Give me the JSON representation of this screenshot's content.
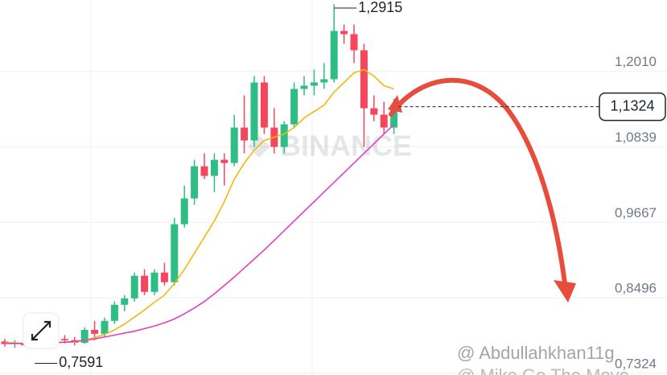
{
  "chart_data": {
    "type": "candlestick",
    "open": [
      0.768,
      0.764,
      0.766,
      0.762,
      0.764,
      0.768,
      0.772,
      0.77,
      0.766,
      0.786,
      0.78,
      0.8,
      0.825,
      0.835,
      0.87,
      0.845,
      0.875,
      0.86,
      0.95,
      0.99,
      1.04,
      1.025,
      1.05,
      1.045,
      1.1,
      1.08,
      1.17,
      1.1,
      1.07,
      1.105,
      1.16,
      1.165,
      1.17,
      1.175,
      1.25,
      1.245,
      1.22,
      1.13,
      1.12,
      1.1
    ],
    "high": [
      0.772,
      0.77,
      0.77,
      0.766,
      0.772,
      0.776,
      0.778,
      0.775,
      0.79,
      0.8,
      0.805,
      0.83,
      0.84,
      0.875,
      0.88,
      0.88,
      0.89,
      0.96,
      1.01,
      1.05,
      1.06,
      1.06,
      1.06,
      1.12,
      1.15,
      1.18,
      1.18,
      1.13,
      1.11,
      1.17,
      1.18,
      1.19,
      1.2,
      1.2915,
      1.26,
      1.26,
      1.23,
      1.15,
      1.14,
      1.145
    ],
    "low": [
      0.76,
      0.758,
      0.76,
      0.7591,
      0.762,
      0.764,
      0.765,
      0.762,
      0.764,
      0.77,
      0.775,
      0.795,
      0.815,
      0.83,
      0.84,
      0.84,
      0.855,
      0.855,
      0.945,
      0.98,
      1.02,
      1.0,
      1.01,
      1.04,
      1.06,
      1.07,
      1.09,
      1.06,
      1.06,
      1.1,
      1.15,
      1.15,
      1.16,
      1.17,
      1.23,
      1.2,
      1.07,
      1.11,
      1.09,
      1.09
    ],
    "close": [
      0.764,
      0.766,
      0.762,
      0.764,
      0.768,
      0.772,
      0.77,
      0.766,
      0.786,
      0.78,
      0.8,
      0.825,
      0.835,
      0.87,
      0.845,
      0.875,
      0.86,
      0.95,
      0.99,
      1.04,
      1.025,
      1.05,
      1.045,
      1.1,
      1.08,
      1.17,
      1.1,
      1.07,
      1.105,
      1.16,
      1.165,
      1.17,
      1.175,
      1.25,
      1.245,
      1.22,
      1.13,
      1.12,
      1.1,
      1.1324
    ],
    "up_color": "#2ebd85",
    "down_color": "#f6465d",
    "lines": [
      {
        "color": "#f0b90b",
        "values": [
          0.766,
          0.766,
          0.765,
          0.764,
          0.765,
          0.766,
          0.767,
          0.767,
          0.77,
          0.774,
          0.779,
          0.786,
          0.795,
          0.806,
          0.817,
          0.829,
          0.84,
          0.858,
          0.88,
          0.905,
          0.93,
          0.955,
          0.985,
          1.02,
          1.045,
          1.065,
          1.08,
          1.085,
          1.09,
          1.1,
          1.115,
          1.125,
          1.135,
          1.155,
          1.17,
          1.185,
          1.19,
          1.18,
          1.165,
          1.16
        ]
      },
      {
        "color": "#e040c0",
        "values": [
          0.765,
          0.765,
          0.765,
          0.765,
          0.765,
          0.766,
          0.767,
          0.768,
          0.77,
          0.772,
          0.775,
          0.778,
          0.781,
          0.784,
          0.788,
          0.792,
          0.797,
          0.803,
          0.811,
          0.82,
          0.83,
          0.842,
          0.855,
          0.868,
          0.882,
          0.896,
          0.91,
          0.925,
          0.94,
          0.955,
          0.97,
          0.985,
          1.0,
          1.015,
          1.03,
          1.045,
          1.06,
          1.075,
          1.09,
          1.105
        ]
      }
    ],
    "ylim": [
      0.716,
      1.298
    ],
    "yticks": [
      {
        "value": 1.201,
        "label": "1,2010"
      },
      {
        "value": 1.0839,
        "label": "1,0839"
      },
      {
        "value": 0.9667,
        "label": "0,9667"
      },
      {
        "value": 0.8496,
        "label": "0,8496"
      },
      {
        "value": 0.7324,
        "label": "0,7324"
      }
    ],
    "grid": true,
    "max_label": {
      "value": 1.2915,
      "label": "1,2915"
    },
    "min_label": {
      "value": 0.7591,
      "label": "0,7591"
    },
    "last_price": {
      "value": 1.1324,
      "label": "1,1324"
    },
    "watermark": "BINANCE",
    "credits": [
      "@ Abdullahkhan11g",
      "@ Mike Go The Move"
    ]
  }
}
